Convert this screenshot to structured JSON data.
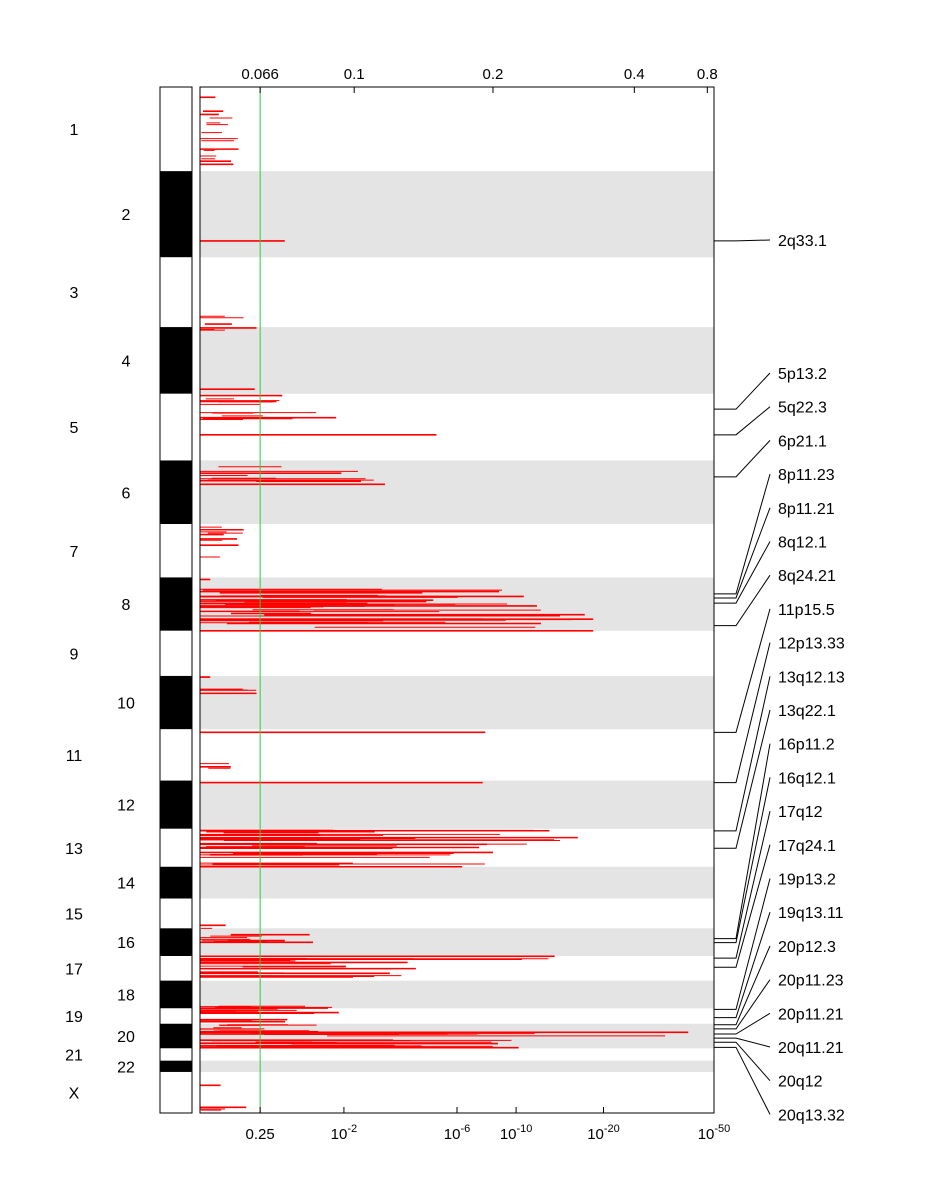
{
  "chart_data": {
    "type": "genomic-significance-plot",
    "title": "",
    "threshold_value": 0.25,
    "threshold_q": 0.066,
    "top_axis": {
      "label": "",
      "ticks": [
        "0.066",
        "0.1",
        "0.2",
        "0.4",
        "0.8"
      ],
      "tick_fractions": [
        0.117,
        0.3,
        0.57,
        0.845,
        0.987
      ]
    },
    "bottom_axis": {
      "label": "",
      "ticks": [
        {
          "base": "0.25",
          "exp": "",
          "frac": 0.117
        },
        {
          "base": "10",
          "exp": "-2",
          "frac": 0.28
        },
        {
          "base": "10",
          "exp": "-6",
          "frac": 0.5
        },
        {
          "base": "10",
          "exp": "-10",
          "frac": 0.615
        },
        {
          "base": "10",
          "exp": "-20",
          "frac": 0.785
        },
        {
          "base": "10",
          "exp": "-50",
          "frac": 1.0
        }
      ]
    },
    "chromosomes": [
      {
        "name": "1",
        "pos": 0.0,
        "len": 0.082,
        "label_col": "left"
      },
      {
        "name": "2",
        "pos": 0.082,
        "len": 0.084,
        "label_col": "right"
      },
      {
        "name": "3",
        "pos": 0.166,
        "len": 0.068,
        "label_col": "left"
      },
      {
        "name": "4",
        "pos": 0.234,
        "len": 0.065,
        "label_col": "right"
      },
      {
        "name": "5",
        "pos": 0.299,
        "len": 0.065,
        "label_col": "left"
      },
      {
        "name": "6",
        "pos": 0.364,
        "len": 0.062,
        "label_col": "right"
      },
      {
        "name": "7",
        "pos": 0.426,
        "len": 0.052,
        "label_col": "left"
      },
      {
        "name": "8",
        "pos": 0.478,
        "len": 0.052,
        "label_col": "right"
      },
      {
        "name": "9",
        "pos": 0.53,
        "len": 0.044,
        "label_col": "left"
      },
      {
        "name": "10",
        "pos": 0.574,
        "len": 0.052,
        "label_col": "right"
      },
      {
        "name": "11",
        "pos": 0.626,
        "len": 0.05,
        "label_col": "left"
      },
      {
        "name": "12",
        "pos": 0.676,
        "len": 0.047,
        "label_col": "right"
      },
      {
        "name": "13",
        "pos": 0.723,
        "len": 0.037,
        "label_col": "left"
      },
      {
        "name": "14",
        "pos": 0.76,
        "len": 0.031,
        "label_col": "right"
      },
      {
        "name": "15",
        "pos": 0.791,
        "len": 0.029,
        "label_col": "left"
      },
      {
        "name": "16",
        "pos": 0.82,
        "len": 0.027,
        "label_col": "right"
      },
      {
        "name": "17",
        "pos": 0.847,
        "len": 0.024,
        "label_col": "left"
      },
      {
        "name": "18",
        "pos": 0.871,
        "len": 0.027,
        "label_col": "right"
      },
      {
        "name": "19",
        "pos": 0.898,
        "len": 0.015,
        "label_col": "left"
      },
      {
        "name": "20",
        "pos": 0.913,
        "len": 0.024,
        "label_col": "right"
      },
      {
        "name": "21",
        "pos": 0.937,
        "len": 0.012,
        "label_col": "left"
      },
      {
        "name": "22",
        "pos": 0.949,
        "len": 0.011,
        "label_col": "right"
      },
      {
        "name": "X",
        "pos": 0.96,
        "len": 0.04,
        "label_col": "left"
      }
    ],
    "peaks": [
      {
        "label": "2q33.1",
        "pos": 0.15,
        "score": 0.165
      },
      {
        "label": "5p13.2",
        "pos": 0.314,
        "score": 0.265
      },
      {
        "label": "5q22.3",
        "pos": 0.339,
        "score": 0.46
      },
      {
        "label": "6p21.1",
        "pos": 0.38,
        "score": 0.36
      },
      {
        "label": "8p11.23",
        "pos": 0.494,
        "score": 0.63
      },
      {
        "label": "8p11.21",
        "pos": 0.498,
        "score": 0.4
      },
      {
        "label": "8q12.1",
        "pos": 0.503,
        "score": 0.38
      },
      {
        "label": "8q24.21",
        "pos": 0.525,
        "score": 0.765
      },
      {
        "label": "11p15.5",
        "pos": 0.629,
        "score": 0.555
      },
      {
        "label": "12p13.33",
        "pos": 0.678,
        "score": 0.55
      },
      {
        "label": "13q12.13",
        "pos": 0.725,
        "score": 0.735
      },
      {
        "label": "13q22.1",
        "pos": 0.742,
        "score": 0.565
      },
      {
        "label": "16p11.2",
        "pos": 0.83,
        "score": 0.22
      },
      {
        "label": "16q12.1",
        "pos": 0.834,
        "score": 0.115
      },
      {
        "label": "17q12",
        "pos": 0.849,
        "score": 0.4
      },
      {
        "label": "17q24.1",
        "pos": 0.858,
        "score": 0.69
      },
      {
        "label": "19p13.2",
        "pos": 0.899,
        "score": 0.27
      },
      {
        "label": "19q13.11",
        "pos": 0.907,
        "score": 0.17
      },
      {
        "label": "20p12.3",
        "pos": 0.914,
        "score": 0.17
      },
      {
        "label": "20p11.23",
        "pos": 0.918,
        "score": 0.23
      },
      {
        "label": "20p11.21",
        "pos": 0.923,
        "score": 0.72
      },
      {
        "label": "20q11.21",
        "pos": 0.927,
        "score": 0.95
      },
      {
        "label": "20q12",
        "pos": 0.931,
        "score": 0.62
      },
      {
        "label": "20q13.32",
        "pos": 0.936,
        "score": 0.47
      }
    ],
    "clusters": [
      {
        "pos": 0.01,
        "spread": 0.003,
        "count": 1,
        "max": 0.03
      },
      {
        "pos": 0.05,
        "spread": 0.034,
        "count": 14,
        "max": 0.075
      },
      {
        "pos": 0.15,
        "spread": 0.0,
        "count": 1,
        "max": 0.165
      },
      {
        "pos": 0.233,
        "spread": 0.01,
        "count": 6,
        "max": 0.11
      },
      {
        "pos": 0.306,
        "spread": 0.012,
        "count": 8,
        "max": 0.16
      },
      {
        "pos": 0.318,
        "spread": 0.007,
        "count": 6,
        "max": 0.265
      },
      {
        "pos": 0.339,
        "spread": 0.0,
        "count": 1,
        "max": 0.46
      },
      {
        "pos": 0.38,
        "spread": 0.01,
        "count": 10,
        "max": 0.36
      },
      {
        "pos": 0.434,
        "spread": 0.01,
        "count": 7,
        "max": 0.085
      },
      {
        "pos": 0.454,
        "spread": 0.01,
        "count": 3,
        "max": 0.075
      },
      {
        "pos": 0.48,
        "spread": 0.003,
        "count": 1,
        "max": 0.02
      },
      {
        "pos": 0.497,
        "spread": 0.008,
        "count": 20,
        "max": 0.63
      },
      {
        "pos": 0.515,
        "spread": 0.012,
        "count": 24,
        "max": 0.765
      },
      {
        "pos": 0.53,
        "spread": 0.0,
        "count": 1,
        "max": 0.765
      },
      {
        "pos": 0.574,
        "spread": 0.002,
        "count": 2,
        "max": 0.02
      },
      {
        "pos": 0.59,
        "spread": 0.003,
        "count": 5,
        "max": 0.11
      },
      {
        "pos": 0.629,
        "spread": 0.0,
        "count": 1,
        "max": 0.555
      },
      {
        "pos": 0.663,
        "spread": 0.004,
        "count": 3,
        "max": 0.06
      },
      {
        "pos": 0.678,
        "spread": 0.0,
        "count": 1,
        "max": 0.55
      },
      {
        "pos": 0.734,
        "spread": 0.01,
        "count": 18,
        "max": 0.735
      },
      {
        "pos": 0.749,
        "spread": 0.01,
        "count": 14,
        "max": 0.57
      },
      {
        "pos": 0.76,
        "spread": 0.0,
        "count": 1,
        "max": 0.51
      },
      {
        "pos": 0.819,
        "spread": 0.002,
        "count": 2,
        "max": 0.05
      },
      {
        "pos": 0.83,
        "spread": 0.004,
        "count": 8,
        "max": 0.22
      },
      {
        "pos": 0.851,
        "spread": 0.004,
        "count": 10,
        "max": 0.69
      },
      {
        "pos": 0.862,
        "spread": 0.007,
        "count": 12,
        "max": 0.42
      },
      {
        "pos": 0.899,
        "spread": 0.004,
        "count": 10,
        "max": 0.27
      },
      {
        "pos": 0.909,
        "spread": 0.002,
        "count": 4,
        "max": 0.17
      },
      {
        "pos": 0.917,
        "spread": 0.004,
        "count": 10,
        "max": 0.23
      },
      {
        "pos": 0.924,
        "spread": 0.003,
        "count": 8,
        "max": 0.95
      },
      {
        "pos": 0.933,
        "spread": 0.004,
        "count": 14,
        "max": 0.62
      },
      {
        "pos": 0.973,
        "spread": 0.003,
        "count": 1,
        "max": 0.04
      },
      {
        "pos": 0.996,
        "spread": 0.002,
        "count": 3,
        "max": 0.09
      }
    ]
  }
}
